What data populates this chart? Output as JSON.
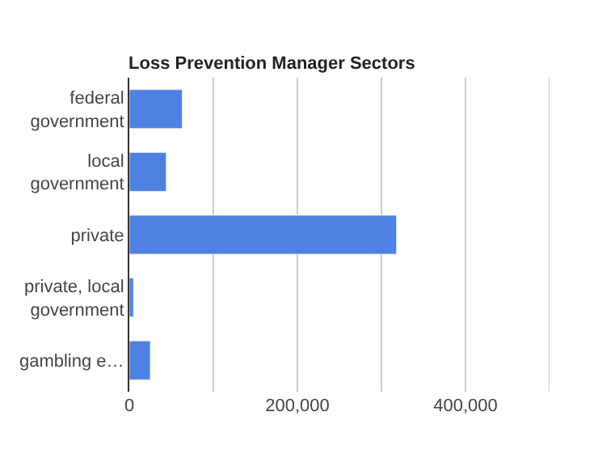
{
  "chart_data": {
    "type": "bar",
    "orientation": "horizontal",
    "title": "Loss Prevention Manager Sectors",
    "categories": [
      "federal government",
      "local government",
      "private",
      "private, local government",
      "gambling e…"
    ],
    "values": [
      63000,
      44000,
      318000,
      5000,
      25000
    ],
    "color": "#4f81e3",
    "xlim": [
      0,
      500000
    ],
    "xticks": [
      0,
      {
        "value": 100000,
        "label": null
      },
      {
        "value": 200000,
        "label": "200,000"
      },
      {
        "value": 300000,
        "label": null
      },
      {
        "value": 400000,
        "label": "400,000"
      },
      {
        "value": 500000,
        "label": null
      }
    ],
    "grid": "x"
  }
}
